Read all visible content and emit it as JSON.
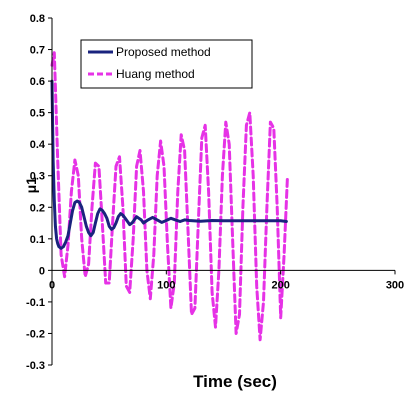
{
  "chart_data": {
    "type": "line",
    "xlabel": "Time (sec)",
    "ylabel": "μ1",
    "xlim": [
      0,
      300
    ],
    "ylim": [
      -0.3,
      0.8
    ],
    "x_ticks": [
      "0",
      "100",
      "200",
      "300"
    ],
    "y_ticks": [
      "0.8",
      "0.7",
      "0.6",
      "0.5",
      "0.4",
      "0.3",
      "0.2",
      "0.1",
      "0",
      "-0.1",
      "-0.2",
      "-0.3"
    ],
    "grid": false,
    "legend_position": "top-left",
    "series": [
      {
        "name": "Proposed method",
        "color": "#1a237e",
        "style": "solid",
        "x": [
          0,
          1,
          2,
          3,
          4,
          5,
          6,
          8,
          10,
          12,
          14,
          16,
          18,
          20,
          22,
          24,
          26,
          28,
          30,
          32,
          34,
          36,
          38,
          40,
          42,
          44,
          46,
          48,
          50,
          52,
          54,
          56,
          58,
          60,
          62,
          64,
          66,
          68,
          70,
          72,
          74,
          76,
          78,
          80,
          84,
          88,
          92,
          96,
          100,
          104,
          108,
          112,
          116,
          120,
          130,
          140,
          150,
          160,
          170,
          180,
          190,
          200,
          205
        ],
        "y": [
          0.6,
          0.35,
          0.22,
          0.14,
          0.1,
          0.085,
          0.075,
          0.07,
          0.075,
          0.09,
          0.11,
          0.15,
          0.19,
          0.215,
          0.22,
          0.215,
          0.2,
          0.17,
          0.14,
          0.12,
          0.11,
          0.12,
          0.15,
          0.18,
          0.195,
          0.19,
          0.18,
          0.165,
          0.14,
          0.13,
          0.135,
          0.15,
          0.17,
          0.18,
          0.175,
          0.165,
          0.155,
          0.145,
          0.15,
          0.16,
          0.17,
          0.165,
          0.16,
          0.15,
          0.16,
          0.168,
          0.16,
          0.152,
          0.158,
          0.165,
          0.16,
          0.155,
          0.16,
          0.158,
          0.156,
          0.158,
          0.157,
          0.157,
          0.157,
          0.157,
          0.157,
          0.157,
          0.155
        ]
      },
      {
        "name": "Huang method",
        "color": "#e632e6",
        "style": "dashed",
        "x": [
          0,
          2,
          5,
          8,
          11,
          14,
          17,
          20,
          23,
          26,
          29,
          32,
          35,
          38,
          41,
          44,
          47,
          50,
          53,
          56,
          59,
          62,
          65,
          68,
          71,
          74,
          77,
          80,
          83,
          86,
          89,
          92,
          95,
          98,
          101,
          104,
          107,
          110,
          113,
          116,
          119,
          122,
          125,
          128,
          131,
          134,
          137,
          140,
          143,
          146,
          149,
          152,
          155,
          158,
          161,
          164,
          167,
          170,
          173,
          176,
          179,
          182,
          185,
          188,
          191,
          194,
          197,
          200,
          203,
          206
        ],
        "y": [
          0.65,
          0.69,
          0.35,
          0.05,
          -0.02,
          0.08,
          0.25,
          0.35,
          0.3,
          0.1,
          -0.02,
          0.02,
          0.2,
          0.34,
          0.33,
          0.15,
          -0.04,
          -0.04,
          0.15,
          0.33,
          0.36,
          0.2,
          -0.05,
          -0.07,
          0.1,
          0.33,
          0.38,
          0.25,
          0.0,
          -0.09,
          0.05,
          0.3,
          0.41,
          0.33,
          0.08,
          -0.12,
          -0.04,
          0.25,
          0.43,
          0.38,
          0.12,
          -0.14,
          -0.12,
          0.15,
          0.42,
          0.46,
          0.25,
          -0.07,
          -0.18,
          0.0,
          0.3,
          0.47,
          0.4,
          0.1,
          -0.2,
          -0.14,
          0.2,
          0.46,
          0.5,
          0.3,
          -0.05,
          -0.22,
          -0.1,
          0.2,
          0.47,
          0.45,
          0.2,
          -0.15,
          0.05,
          0.3
        ]
      }
    ]
  }
}
